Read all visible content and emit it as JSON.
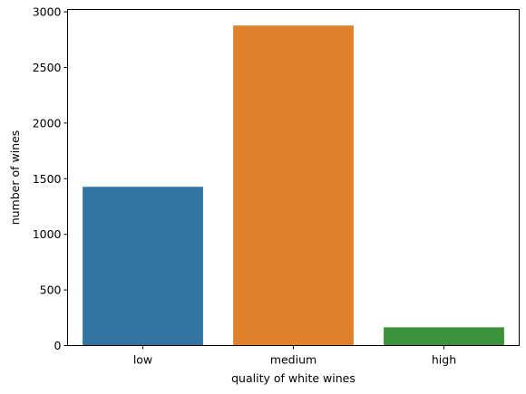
{
  "chart_data": {
    "type": "bar",
    "categories": [
      "low",
      "medium",
      "high"
    ],
    "values": [
      1427,
      2877,
      164
    ],
    "colors": [
      "#3274a1",
      "#e1812c",
      "#3a923a"
    ],
    "xlabel": "quality of white wines",
    "ylabel": "number of wines",
    "ylim": [
      0,
      3021
    ],
    "yticks": [
      0,
      500,
      1000,
      1500,
      2000,
      2500,
      3000
    ],
    "ytick_labels": [
      "0",
      "500",
      "1000",
      "1500",
      "2000",
      "2500",
      "3000"
    ],
    "grid": false,
    "legend": "none"
  }
}
